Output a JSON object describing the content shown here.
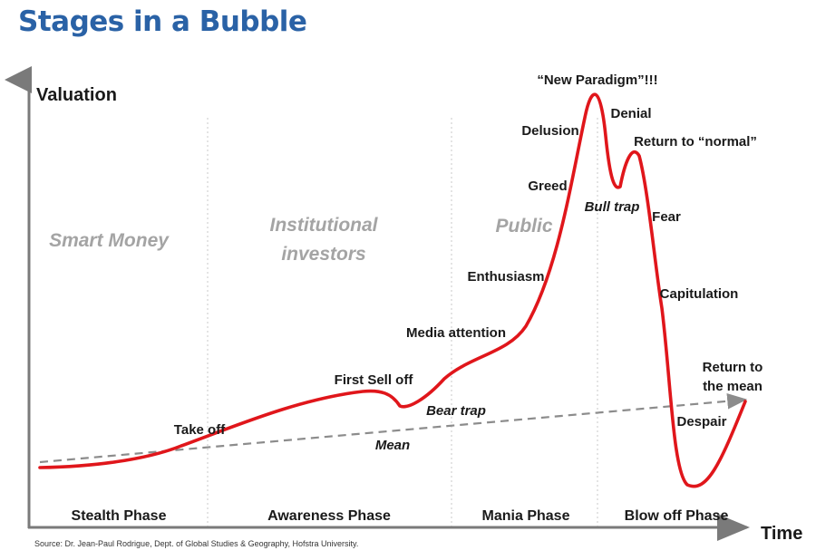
{
  "title": "Stages in a Bubble",
  "y_axis_label": "Valuation",
  "x_axis_label": "Time",
  "groups": {
    "smart_money": "Smart Money",
    "institutional_1": "Institutional",
    "institutional_2": "investors",
    "public": "Public"
  },
  "phases": {
    "stealth": "Stealth Phase",
    "awareness": "Awareness Phase",
    "mania": "Mania Phase",
    "blowoff": "Blow off Phase"
  },
  "stages": {
    "take_off": "Take off",
    "first_sell_off": "First Sell off",
    "bear_trap": "Bear trap",
    "mean": "Mean",
    "media_attention": "Media attention",
    "enthusiasm": "Enthusiasm",
    "greed": "Greed",
    "delusion": "Delusion",
    "new_paradigm": "“New Paradigm”!!!",
    "denial": "Denial",
    "return_to_normal": "Return to “normal”",
    "bull_trap": "Bull trap",
    "fear": "Fear",
    "capitulation": "Capitulation",
    "return_mean_1": "Return to",
    "return_mean_2": "the mean",
    "despair": "Despair"
  },
  "source": "Source: Dr. Jean-Paul Rodrigue, Dept. of Global Studies & Geography, Hofstra University.",
  "colors": {
    "title": "#2a62a6",
    "curve": "#e0161b",
    "mean_line": "#8c8c8c",
    "axis": "#7a7a7a",
    "group_text": "#a4a4a4"
  }
}
